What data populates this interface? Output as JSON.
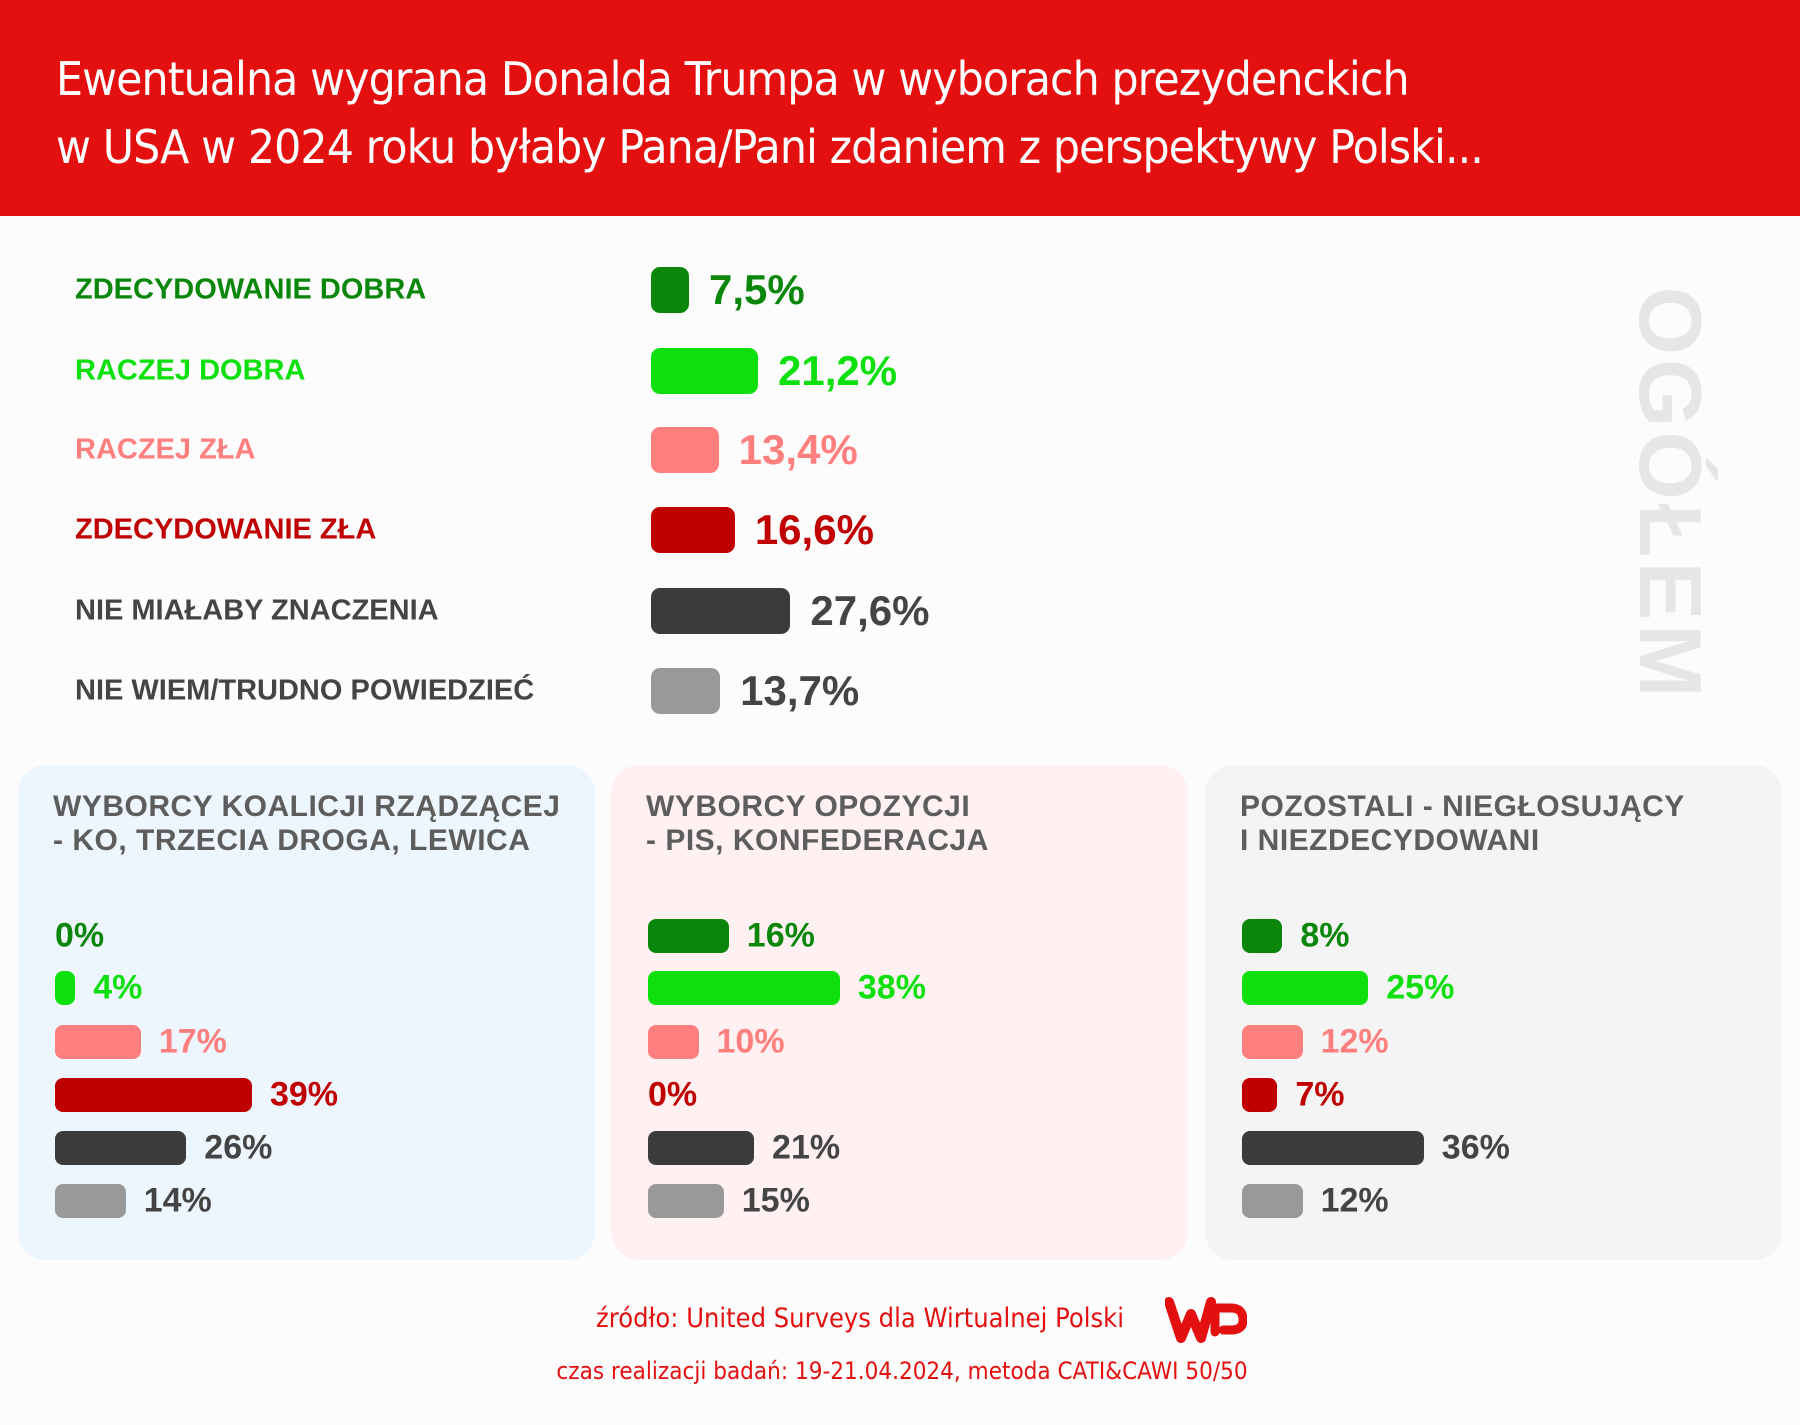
{
  "header": {
    "title_lines": [
      "Ewentualna wygrana Donalda Trumpa w wyborach prezydenckich",
      "w USA w 2024 roku byłaby Pana/Pani zdaniem z perspektywy Polski..."
    ]
  },
  "side_label": "OGÓŁEM",
  "colors": {
    "header": "#e3100f",
    "zdecydowanie_dobra": "#0a870a",
    "raczej_dobra": "#0ee00e",
    "raczej_zla": "#ff7f7f",
    "zdecydowanie_zla": "#c00000",
    "nie_mialaby_znaczenia": "#3b3b3b",
    "nie_wiem": "#999999"
  },
  "chart_data": [
    {
      "type": "bar",
      "orientation": "horizontal",
      "title": "OGÓŁEM",
      "categories": [
        "ZDECYDOWANIE DOBRA",
        "RACZEJ DOBRA",
        "RACZEJ ZŁA",
        "ZDECYDOWANIE ZŁA",
        "NIE MIAŁABY ZNACZENIA",
        "NIE WIEM/TRUDNO POWIEDZIEĆ"
      ],
      "values": [
        7.5,
        21.2,
        13.4,
        16.6,
        27.6,
        13.7
      ],
      "value_labels": [
        "7,5%",
        "21,2%",
        "13,4%",
        "16,6%",
        "27,6%",
        "13,7%"
      ]
    },
    {
      "type": "bar",
      "orientation": "horizontal",
      "title_lines": [
        "WYBORCY KOALICJI RZĄDZĄCEJ",
        "- KO, TRZECIA DROGA, LEWICA"
      ],
      "values": [
        0,
        4,
        17,
        39,
        26,
        14
      ],
      "value_labels": [
        "0%",
        "4%",
        "17%",
        "39%",
        "26%",
        "14%"
      ],
      "background": "#edf5fe"
    },
    {
      "type": "bar",
      "orientation": "horizontal",
      "title_lines": [
        "WYBORCY OPOZYCJI",
        "- PIS, KONFEDERACJA"
      ],
      "values": [
        16,
        38,
        10,
        0,
        21,
        15
      ],
      "value_labels": [
        "16%",
        "38%",
        "10%",
        "0%",
        "21%",
        "15%"
      ],
      "background": "#fff1f1"
    },
    {
      "type": "bar",
      "orientation": "horizontal",
      "title_lines": [
        "POZOSTALI - NIEGŁOSUJĄCY",
        "I NIEZDECYDOWANI"
      ],
      "values": [
        8,
        25,
        12,
        7,
        36,
        12
      ],
      "value_labels": [
        "8%",
        "25%",
        "12%",
        "7%",
        "36%",
        "12%"
      ],
      "background": "#f4f4f4"
    }
  ],
  "footer": {
    "source": "źródło: United Surveys dla Wirtualnej Polski",
    "details": "czas realizacji badań: 19-21.04.2024, metoda CATI&CAWI 50/50",
    "logo_text": "WP"
  }
}
